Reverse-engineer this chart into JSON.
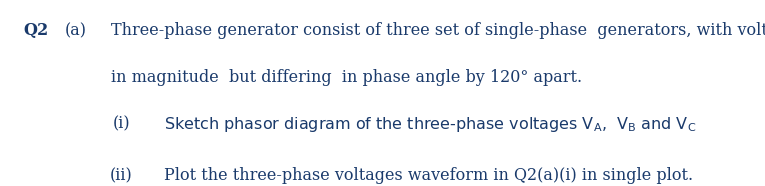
{
  "background_color": "#ffffff",
  "text_color": "#1a3a6b",
  "font_family": "serif",
  "q_label": "Q2",
  "a_label": "(a)",
  "main_text_line1": "Three-phase generator consist of three set of single-phase  generators, with voltages equal",
  "main_text_line2": "in magnitude  but differing  in phase angle by 120° apart.",
  "sub_i_label": "(i)",
  "sub_i_text": "Sketch phasor diagram of the three-phase voltages $\\mathrm{V_{A}}$,  $\\mathrm{V_{B}}$ and $\\mathrm{V_{C}}$",
  "sub_ii_label": "(ii)",
  "sub_ii_text": "Plot the three-phase voltages waveform in Q2(a)(i) in single plot.",
  "figsize": [
    7.65,
    1.86
  ],
  "dpi": 100,
  "main_fontsize": 11.5
}
